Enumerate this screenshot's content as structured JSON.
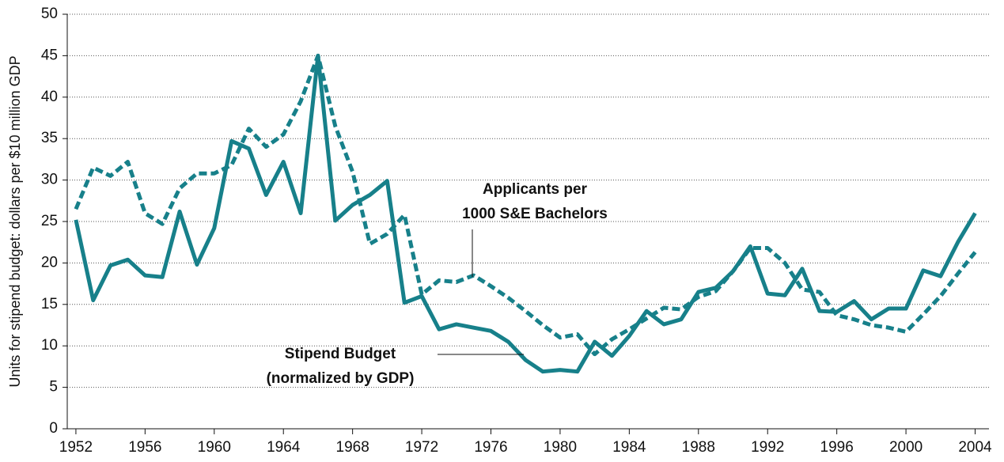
{
  "chart_data": {
    "type": "line",
    "y_label": "Units for stipend budget: dollars per $10 million GDP",
    "x": [
      1952,
      1953,
      1954,
      1955,
      1956,
      1957,
      1958,
      1959,
      1960,
      1961,
      1962,
      1963,
      1964,
      1965,
      1966,
      1967,
      1968,
      1969,
      1970,
      1971,
      1972,
      1973,
      1974,
      1975,
      1976,
      1977,
      1978,
      1979,
      1980,
      1981,
      1982,
      1983,
      1984,
      1985,
      1986,
      1987,
      1988,
      1989,
      1990,
      1991,
      1992,
      1993,
      1994,
      1995,
      1996,
      1997,
      1998,
      1999,
      2000,
      2001,
      2002,
      2003,
      2004
    ],
    "series": [
      {
        "color": "#17808a",
        "dash": false,
        "values": [
          25.2,
          15.5,
          19.7,
          20.4,
          18.5,
          18.3,
          26.2,
          19.8,
          24.2,
          34.7,
          33.8,
          28.2,
          32.2,
          26.0,
          45.0,
          25.1,
          27.0,
          28.2,
          29.9,
          15.2,
          16.0,
          12.0,
          12.6,
          12.2,
          11.8,
          10.5,
          8.3,
          6.9,
          7.1,
          6.9,
          10.5,
          8.8,
          11.2,
          14.2,
          12.6,
          13.2,
          16.5,
          17.0,
          19.0,
          22.0,
          16.3,
          16.1,
          19.3,
          14.2,
          14.1,
          15.4,
          13.2,
          14.5,
          14.5,
          19.1,
          18.4,
          22.5,
          26.0
        ]
      },
      {
        "color": "#17808a",
        "dash": true,
        "values": [
          26.5,
          31.5,
          30.5,
          32.2,
          26.0,
          24.7,
          29.0,
          30.8,
          30.8,
          31.8,
          36.2,
          34.0,
          35.5,
          39.5,
          45.0,
          36.5,
          31.0,
          22.3,
          23.5,
          25.8,
          16.2,
          17.9,
          17.7,
          18.5,
          17.2,
          15.8,
          14.2,
          12.5,
          11.0,
          11.4,
          9.0,
          10.8,
          12.0,
          13.3,
          14.6,
          14.4,
          15.9,
          16.6,
          19.0,
          21.8,
          21.8,
          20.0,
          16.8,
          16.5,
          13.7,
          13.2,
          12.5,
          12.2,
          11.7,
          13.8,
          16.0,
          18.7,
          21.3
        ]
      }
    ],
    "annotations": [
      {
        "lines": [
          "Applicants per",
          "1000 S&E Bachelors"
        ]
      },
      {
        "lines": [
          "Stipend Budget",
          "(normalized by GDP)"
        ]
      }
    ],
    "xlim": [
      1951.5,
      2004.8
    ],
    "xticks": [
      1952,
      1956,
      1960,
      1964,
      1968,
      1972,
      1976,
      1980,
      1984,
      1988,
      1992,
      1996,
      2000,
      2004
    ],
    "ylim": [
      0,
      50
    ],
    "yticks": [
      0,
      5,
      10,
      15,
      20,
      25,
      30,
      35,
      40,
      45,
      50
    ],
    "grid": true
  }
}
